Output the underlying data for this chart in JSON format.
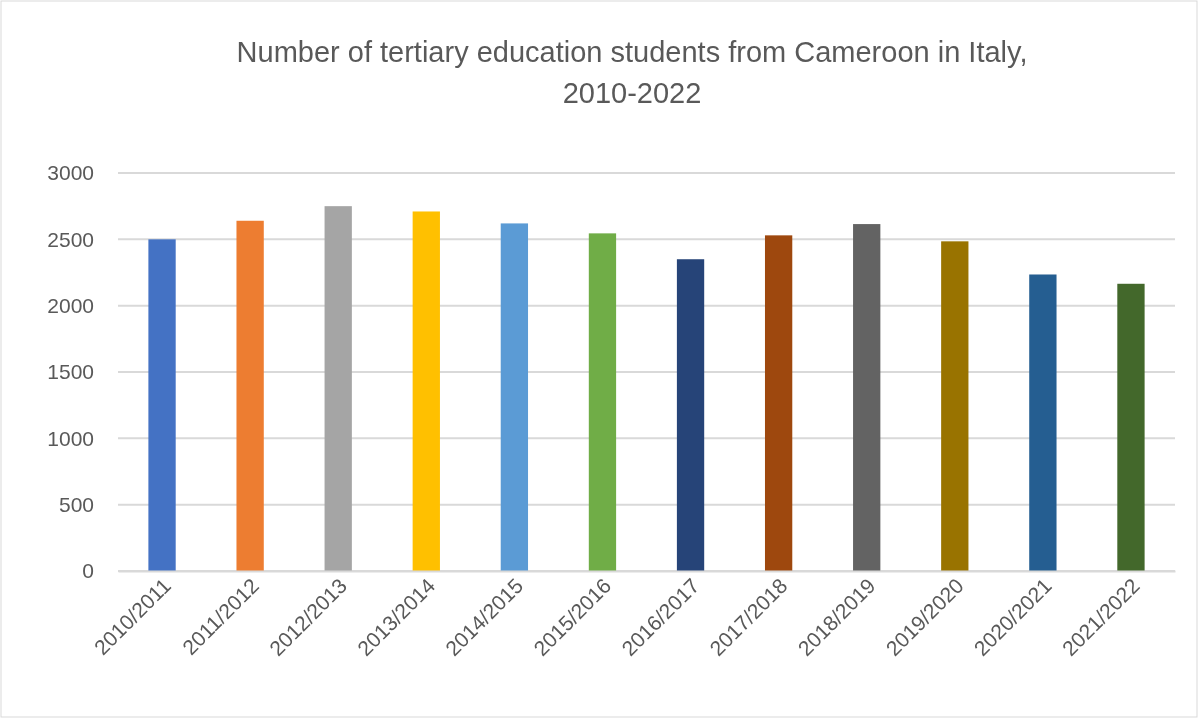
{
  "chart_data": {
    "type": "bar",
    "title": "Number of tertiary education students from Cameroon in Italy, 2010-2022",
    "categories": [
      "2010/2011",
      "2011/2012",
      "2012/2013",
      "2013/2014",
      "2014/2015",
      "2015/2016",
      "2016/2017",
      "2017/2018",
      "2018/2019",
      "2019/2020",
      "2020/2021",
      "2021/2022"
    ],
    "values": [
      2500,
      2640,
      2750,
      2710,
      2620,
      2545,
      2350,
      2530,
      2615,
      2485,
      2235,
      2165
    ],
    "colors": [
      "#4472c4",
      "#ed7d31",
      "#a5a5a5",
      "#ffc000",
      "#5b9bd5",
      "#70ad47",
      "#264478",
      "#9e480e",
      "#636363",
      "#997300",
      "#255e91",
      "#43682b"
    ],
    "ylim": [
      0,
      3000
    ],
    "yticks": [
      0,
      500,
      1000,
      1500,
      2000,
      2500,
      3000
    ],
    "grid": "y"
  }
}
